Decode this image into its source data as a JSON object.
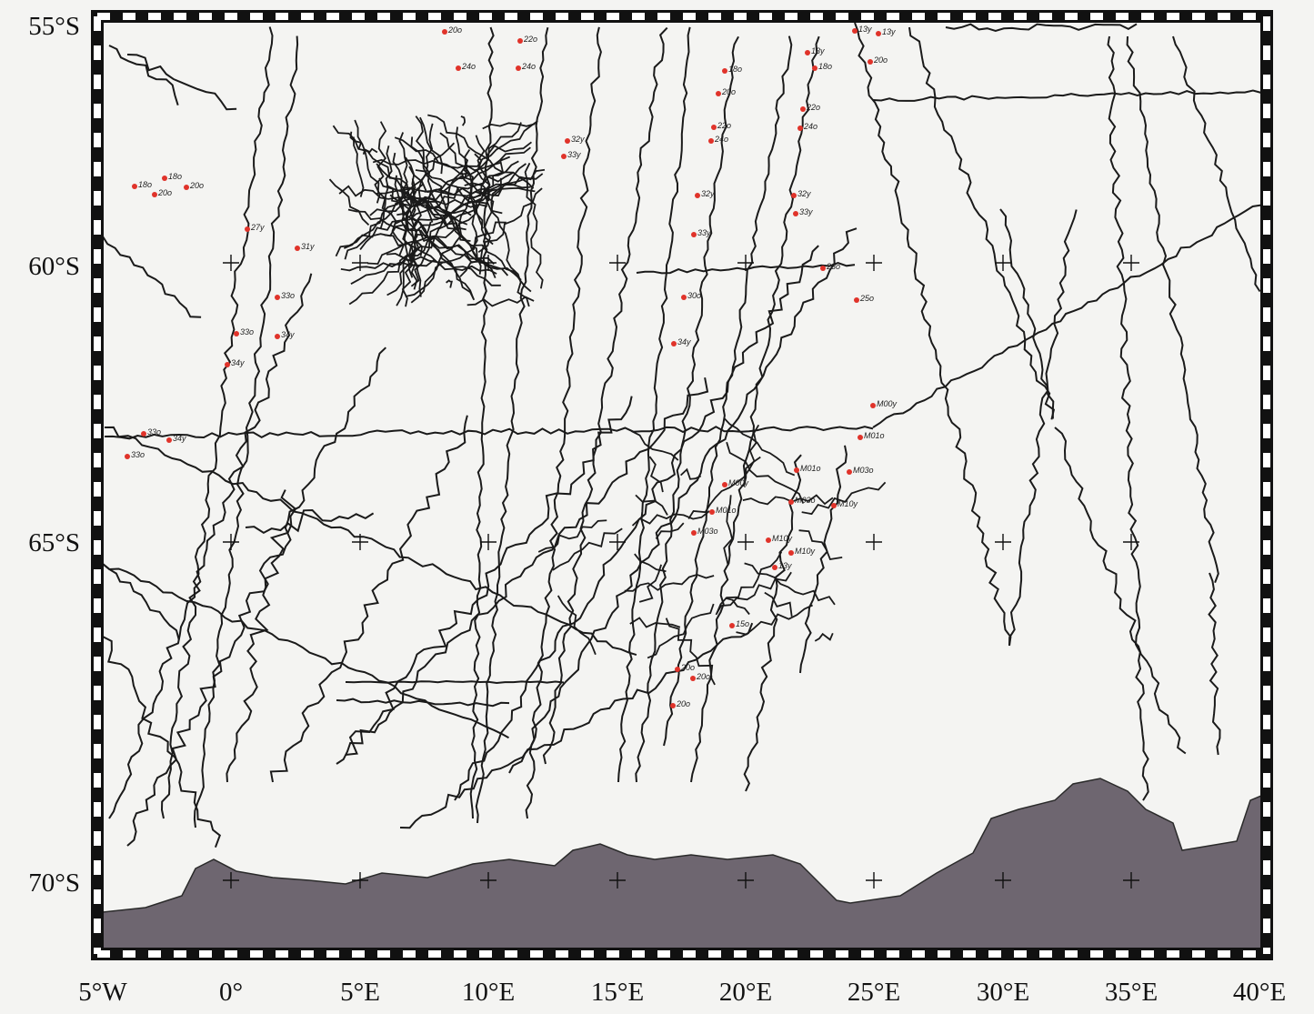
{
  "lat_labels": [
    "55°S",
    "60°S",
    "65°S",
    "70°S"
  ],
  "lon_labels": [
    "5°W",
    "0°",
    "5°E",
    "10°E",
    "15°E",
    "20°E",
    "25°E",
    "30°E",
    "35°E",
    "40°E"
  ],
  "anomaly_labels": [
    "18o",
    "18o",
    "20o",
    "20o",
    "27y",
    "31y",
    "33o",
    "34y",
    "33o",
    "34y",
    "33o",
    "34y",
    "33o",
    "13y",
    "13y",
    "13y",
    "18o",
    "20o",
    "22o",
    "24o",
    "32y",
    "33y",
    "23o",
    "25o",
    "M00y",
    "M01o",
    "M03o",
    "M10y",
    "M01o",
    "M03o",
    "M00y",
    "M01o",
    "M03o",
    "M10y",
    "M10y",
    "13y",
    "15o",
    "20o",
    "20o",
    "20o",
    "30o",
    "34y",
    "32y",
    "33y",
    "18o",
    "20o",
    "22o",
    "24o",
    "32y",
    "33y",
    "22o",
    "24o",
    "20o",
    "24o"
  ]
}
